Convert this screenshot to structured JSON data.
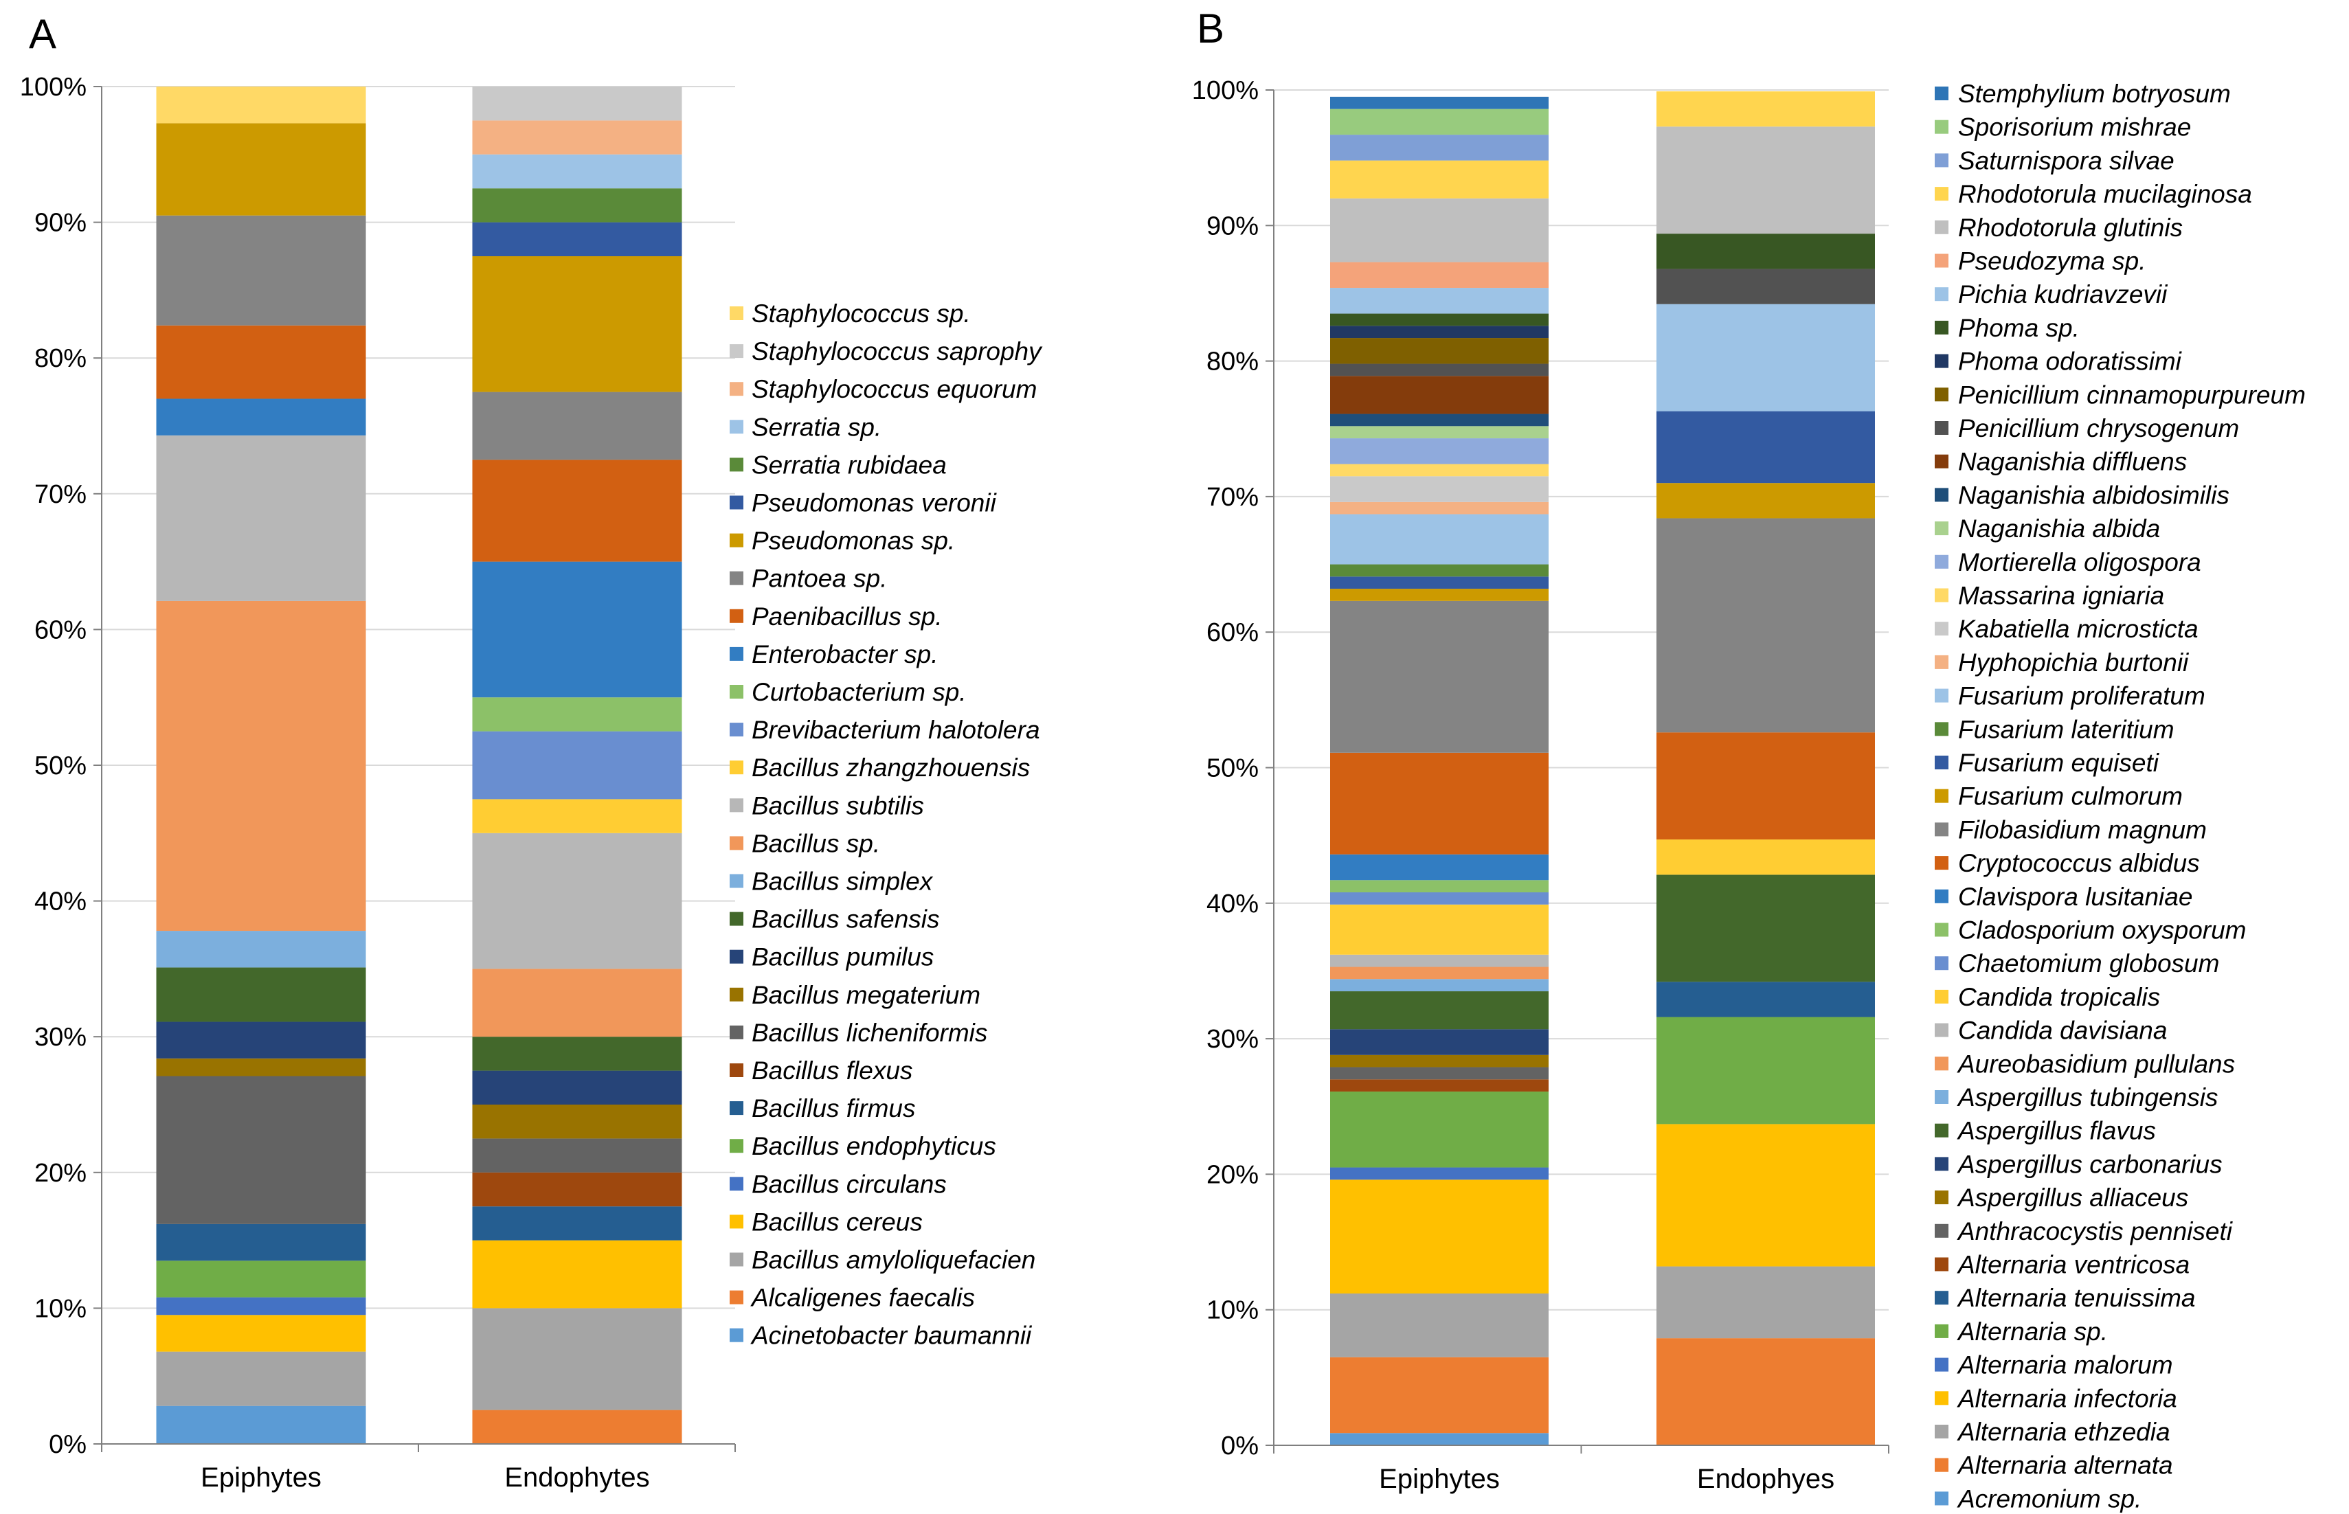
{
  "chart_data": [
    {
      "type": "bar",
      "stacked": true,
      "panel_label": "A",
      "title": "",
      "xlabel": "",
      "ylabel": "",
      "ylim": [
        0,
        100
      ],
      "y_ticks": [
        "0%",
        "10%",
        "20%",
        "30%",
        "40%",
        "50%",
        "60%",
        "70%",
        "80%",
        "90%",
        "100%"
      ],
      "categories": [
        "Epiphytes",
        "Endophytes"
      ],
      "legend_position": "right",
      "series": [
        {
          "name": "Acinetobacter baumannii",
          "color": "#5B9BD5",
          "values": [
            2.8,
            0
          ]
        },
        {
          "name": "Alcaligenes faecalis",
          "color": "#ED7D31",
          "values": [
            0,
            2.5
          ]
        },
        {
          "name": "Bacillus amyloliquefacien",
          "color": "#A5A5A5",
          "values": [
            4.0,
            7.5
          ]
        },
        {
          "name": "Bacillus cereus",
          "color": "#FFC000",
          "values": [
            2.7,
            5.0
          ]
        },
        {
          "name": "Bacillus circulans",
          "color": "#4472C4",
          "values": [
            1.3,
            0
          ]
        },
        {
          "name": "Bacillus endophyticus",
          "color": "#70AD47",
          "values": [
            2.7,
            0
          ]
        },
        {
          "name": "Bacillus firmus",
          "color": "#255E91",
          "values": [
            2.7,
            2.5
          ]
        },
        {
          "name": "Bacillus flexus",
          "color": "#9E480E",
          "values": [
            0,
            2.5
          ]
        },
        {
          "name": "Bacillus licheniformis",
          "color": "#636363",
          "values": [
            10.9,
            2.5
          ]
        },
        {
          "name": "Bacillus megaterium",
          "color": "#997300",
          "values": [
            1.3,
            2.5
          ]
        },
        {
          "name": "Bacillus pumilus",
          "color": "#264478",
          "values": [
            2.7,
            2.5
          ]
        },
        {
          "name": "Bacillus safensis",
          "color": "#43682B",
          "values": [
            4.0,
            2.5
          ]
        },
        {
          "name": "Bacillus simplex",
          "color": "#7CAFDD",
          "values": [
            2.7,
            0
          ]
        },
        {
          "name": "Bacillus sp.",
          "color": "#F1975A",
          "values": [
            24.3,
            5.0
          ]
        },
        {
          "name": "Bacillus subtilis",
          "color": "#B7B7B7",
          "values": [
            12.2,
            10.0
          ]
        },
        {
          "name": "Bacillus zhangzhouensis",
          "color": "#FFCD33",
          "values": [
            0,
            2.5
          ]
        },
        {
          "name": "Brevibacterium halotolera",
          "color": "#698ED0",
          "values": [
            0,
            5.0
          ]
        },
        {
          "name": "Curtobacterium sp.",
          "color": "#8CC168",
          "values": [
            0,
            2.5
          ]
        },
        {
          "name": "Enterobacter sp.",
          "color": "#327DC2",
          "values": [
            2.7,
            10.0
          ]
        },
        {
          "name": "Paenibacillus sp.",
          "color": "#D26012",
          "values": [
            5.4,
            7.5
          ]
        },
        {
          "name": "Pantoea sp.",
          "color": "#848484",
          "values": [
            8.1,
            5.0
          ]
        },
        {
          "name": "Pseudomonas sp.",
          "color": "#CC9A00",
          "values": [
            6.8,
            10.0
          ]
        },
        {
          "name": "Pseudomonas veronii",
          "color": "#335AA1",
          "values": [
            0,
            2.5
          ]
        },
        {
          "name": "Serratia rubidaea",
          "color": "#5A8A39",
          "values": [
            0,
            2.5
          ]
        },
        {
          "name": "Serratia sp.",
          "color": "#9DC3E6",
          "values": [
            0,
            2.5
          ]
        },
        {
          "name": "Staphylococcus equorum",
          "color": "#F4B183",
          "values": [
            0,
            2.5
          ]
        },
        {
          "name": "Staphylococcus saprophy",
          "color": "#C9C9C9",
          "values": [
            0,
            2.5
          ]
        },
        {
          "name": "Staphylococcus sp.",
          "color": "#FFD966",
          "values": [
            2.7,
            0
          ]
        }
      ]
    },
    {
      "type": "bar",
      "stacked": true,
      "panel_label": "B",
      "title": "",
      "xlabel": "",
      "ylabel": "",
      "ylim": [
        0,
        100
      ],
      "y_ticks": [
        "0%",
        "10%",
        "20%",
        "30%",
        "40%",
        "50%",
        "60%",
        "70%",
        "80%",
        "90%",
        "100%"
      ],
      "categories": [
        "Epiphytes",
        "Endophyes"
      ],
      "legend_position": "right",
      "series": [
        {
          "name": "Acremonium sp.",
          "color": "#5B9BD5",
          "values": [
            0.9,
            0
          ]
        },
        {
          "name": "Alternaria alternata",
          "color": "#ED7D31",
          "values": [
            5.6,
            7.9
          ]
        },
        {
          "name": "Alternaria ethzedia",
          "color": "#A5A5A5",
          "values": [
            4.7,
            5.3
          ]
        },
        {
          "name": "Alternaria infectoria",
          "color": "#FFC000",
          "values": [
            8.4,
            10.5
          ]
        },
        {
          "name": "Alternaria malorum",
          "color": "#4472C4",
          "values": [
            0.9,
            0
          ]
        },
        {
          "name": "Alternaria sp.",
          "color": "#70AD47",
          "values": [
            5.6,
            7.9
          ]
        },
        {
          "name": "Alternaria tenuissima",
          "color": "#255E91",
          "values": [
            0,
            2.6
          ]
        },
        {
          "name": "Alternaria ventricosa",
          "color": "#9E480E",
          "values": [
            0.9,
            0
          ]
        },
        {
          "name": "Anthracocystis penniseti",
          "color": "#636363",
          "values": [
            0.9,
            0
          ]
        },
        {
          "name": "Aspergillus alliaceus",
          "color": "#997300",
          "values": [
            0.9,
            0
          ]
        },
        {
          "name": "Aspergillus carbonarius",
          "color": "#264478",
          "values": [
            1.9,
            0
          ]
        },
        {
          "name": "Aspergillus flavus",
          "color": "#43682B",
          "values": [
            2.8,
            7.9
          ]
        },
        {
          "name": "Aspergillus tubingensis",
          "color": "#7CAFDD",
          "values": [
            0.9,
            0
          ]
        },
        {
          "name": "Aureobasidium pullulans",
          "color": "#F1975A",
          "values": [
            0.9,
            0
          ]
        },
        {
          "name": "Candida davisiana",
          "color": "#B7B7B7",
          "values": [
            0.9,
            0
          ]
        },
        {
          "name": "Candida tropicalis",
          "color": "#FFCD33",
          "values": [
            3.7,
            2.6
          ]
        },
        {
          "name": "Chaetomium globosum",
          "color": "#698ED0",
          "values": [
            0.9,
            0
          ]
        },
        {
          "name": "Cladosporium oxysporum",
          "color": "#8CC168",
          "values": [
            0.9,
            0
          ]
        },
        {
          "name": "Clavispora lusitaniae",
          "color": "#327DC2",
          "values": [
            1.9,
            0
          ]
        },
        {
          "name": "Cryptococcus albidus",
          "color": "#D26012",
          "values": [
            7.5,
            7.9
          ]
        },
        {
          "name": "Filobasidium magnum",
          "color": "#848484",
          "values": [
            11.2,
            15.8
          ]
        },
        {
          "name": "Fusarium culmorum",
          "color": "#CC9A00",
          "values": [
            0.9,
            2.6
          ]
        },
        {
          "name": "Fusarium equiseti",
          "color": "#335AA1",
          "values": [
            0.9,
            5.3
          ]
        },
        {
          "name": "Fusarium lateritium",
          "color": "#5A8A39",
          "values": [
            0.9,
            0
          ]
        },
        {
          "name": "Fusarium proliferatum",
          "color": "#9DC3E6",
          "values": [
            3.7,
            7.9
          ]
        },
        {
          "name": "Hyphopichia burtonii",
          "color": "#F4B183",
          "values": [
            0.9,
            0
          ]
        },
        {
          "name": "Kabatiella microsticta",
          "color": "#C9C9C9",
          "values": [
            1.9,
            0
          ]
        },
        {
          "name": "Massarina igniaria",
          "color": "#FFD966",
          "values": [
            0.9,
            0
          ]
        },
        {
          "name": "Mortierella oligospora",
          "color": "#8FAADC",
          "values": [
            1.9,
            0
          ]
        },
        {
          "name": "Naganishia albida",
          "color": "#A9D18E",
          "values": [
            0.9,
            0
          ]
        },
        {
          "name": "Naganishia albidosimilis",
          "color": "#1F4E79",
          "values": [
            0.9,
            0
          ]
        },
        {
          "name": "Naganishia diffluens",
          "color": "#843C0C",
          "values": [
            2.8,
            0
          ]
        },
        {
          "name": "Penicillium chrysogenum",
          "color": "#525252",
          "values": [
            0.9,
            2.6
          ]
        },
        {
          "name": "Penicillium cinnamopurpureum",
          "color": "#7F6000",
          "values": [
            1.9,
            0
          ]
        },
        {
          "name": "Phoma odoratissimi",
          "color": "#203864",
          "values": [
            0.9,
            0
          ]
        },
        {
          "name": "Phoma sp.",
          "color": "#385723",
          "values": [
            0.9,
            2.6
          ]
        },
        {
          "name": "Pichia kudriavzevii",
          "color": "#9DC3E6",
          "values": [
            1.9,
            0
          ]
        },
        {
          "name": "Pseudozyma sp.",
          "color": "#F4A37A",
          "values": [
            1.9,
            0
          ]
        },
        {
          "name": "Rhodotorula glutinis",
          "color": "#BFBFBF",
          "values": [
            4.7,
            7.9
          ]
        },
        {
          "name": "Rhodotorula mucilaginosa",
          "color": "#FFD54F",
          "values": [
            2.8,
            2.6
          ]
        },
        {
          "name": "Saturnispora silvae",
          "color": "#7F9FD6",
          "values": [
            1.9,
            0
          ]
        },
        {
          "name": "Sporisorium mishrae",
          "color": "#98CB7E",
          "values": [
            1.9,
            0
          ]
        },
        {
          "name": "Stemphylium botryosum",
          "color": "#2E75B6",
          "values": [
            0.9,
            0
          ]
        }
      ]
    }
  ]
}
